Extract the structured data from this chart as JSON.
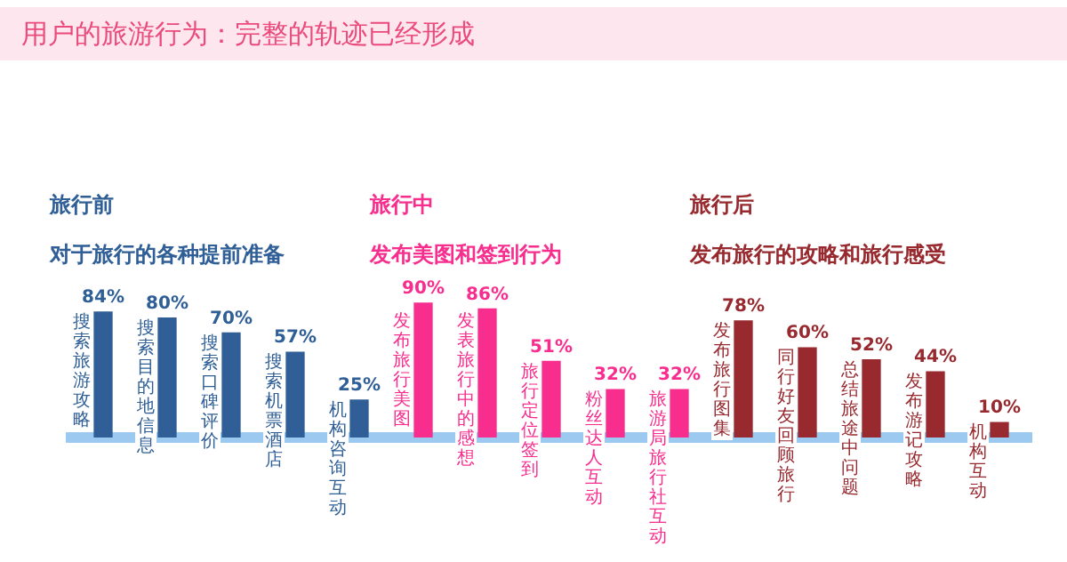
{
  "chart_data": {
    "type": "bar",
    "title": "用户的旅游行为：完整的轨迹已经形成",
    "categories": [
      "搜索旅游攻略",
      "搜索目的地信息",
      "搜索口碑评价",
      "搜索机票酒店",
      "机构咨询互动",
      "发布旅行美图",
      "发表旅行中的感想",
      "旅行定位签到",
      "粉丝达人互动",
      "旅游局旅行社互动",
      "发布旅行图集",
      "同行好友回顾旅行",
      "总结旅途中问题",
      "发布游记攻略",
      "机构互动"
    ],
    "values": [
      84,
      80,
      70,
      57,
      25,
      90,
      86,
      51,
      32,
      32,
      78,
      60,
      52,
      44,
      10
    ],
    "colors": [
      "#2f5f96",
      "#2f5f96",
      "#2f5f96",
      "#2f5f96",
      "#2f5f96",
      "#f72e8e",
      "#f72e8e",
      "#f72e8e",
      "#f72e8e",
      "#f72e8e",
      "#97292f",
      "#97292f",
      "#97292f",
      "#97292f",
      "#97292f"
    ],
    "value_labels": [
      "84%",
      "80%",
      "70%",
      "57%",
      "25%",
      "90%",
      "86%",
      "51%",
      "32%",
      "32%",
      "78%",
      "60%",
      "52%",
      "44%",
      "10%"
    ],
    "legend": false,
    "annotations": [
      "旅行前",
      "对于旅行的各种提前准备",
      "旅行中",
      "发布美图和签到行为",
      "旅行后",
      "发布旅行的攻略和旅行感受"
    ]
  }
}
